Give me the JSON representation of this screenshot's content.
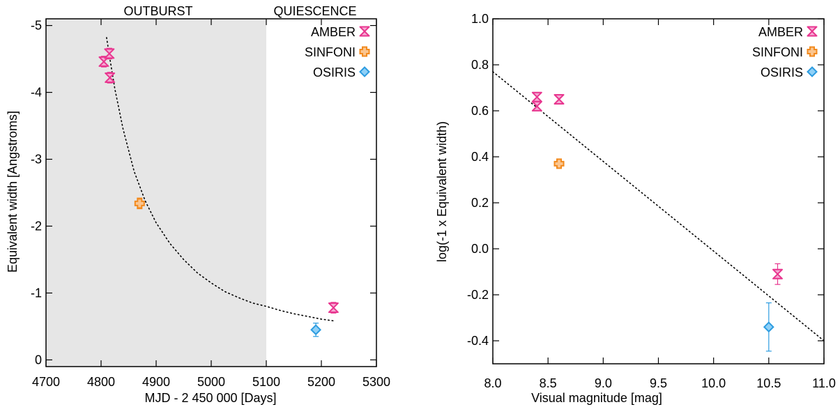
{
  "chart_data": [
    {
      "type": "scatter",
      "xlabel": "MJD - 2 450 000 [Days]",
      "ylabel": "Equivalent width [Angstroms]",
      "xlim": [
        4700,
        5300
      ],
      "ylim": [
        0.1,
        -5.1
      ],
      "y_axis_reversed": true,
      "xticks": [
        4700,
        4800,
        4900,
        5000,
        5100,
        5200,
        5300
      ],
      "yticks": [
        0,
        -1,
        -2,
        -3,
        -4,
        -5
      ],
      "shaded_region": {
        "x": [
          4700,
          5100
        ],
        "color": "#e6e6e6"
      },
      "annotations": [
        "OUTBURST",
        "QUIESCENCE"
      ],
      "legend": [
        "AMBER",
        "SINFONI",
        "OSIRIS"
      ],
      "legend_position": "top-right",
      "series": [
        {
          "name": "AMBER",
          "marker": "hourglass",
          "color": "#e8368f",
          "points": [
            [
              4805,
              -4.46,
              0.08
            ],
            [
              4815,
              -4.58,
              0.08
            ],
            [
              4816,
              -4.22,
              0.08
            ],
            [
              5222,
              -0.78,
              0.08
            ]
          ]
        },
        {
          "name": "SINFONI",
          "marker": "cross",
          "color": "#f28a1e",
          "points": [
            [
              4870,
              -2.34,
              0.08
            ]
          ]
        },
        {
          "name": "OSIRIS",
          "marker": "diamond",
          "color": "#2c9ce0",
          "points": [
            [
              5190,
              -0.45,
              0.1
            ]
          ]
        }
      ],
      "fit_curve": {
        "style": "dotted",
        "points": [
          [
            4810,
            -4.82
          ],
          [
            4815,
            -4.55
          ],
          [
            4825,
            -4.05
          ],
          [
            4840,
            -3.45
          ],
          [
            4860,
            -2.82
          ],
          [
            4880,
            -2.38
          ],
          [
            4900,
            -2.05
          ],
          [
            4925,
            -1.74
          ],
          [
            4950,
            -1.5
          ],
          [
            4975,
            -1.3
          ],
          [
            5000,
            -1.15
          ],
          [
            5025,
            -1.02
          ],
          [
            5050,
            -0.93
          ],
          [
            5075,
            -0.85
          ],
          [
            5100,
            -0.8
          ],
          [
            5125,
            -0.74
          ],
          [
            5150,
            -0.69
          ],
          [
            5175,
            -0.65
          ],
          [
            5200,
            -0.61
          ],
          [
            5225,
            -0.58
          ]
        ]
      }
    },
    {
      "type": "scatter",
      "xlabel": "Visual magnitude [mag]",
      "ylabel": "log(-1 x Equivalent width)",
      "xlim": [
        8.0,
        11.0
      ],
      "ylim": [
        -0.5,
        1.0
      ],
      "xticks": [
        "8.0",
        "8.5",
        "9.0",
        "9.5",
        "10.0",
        "10.5",
        "11.0"
      ],
      "yticks": [
        "-0.4",
        "-0.2",
        "0.0",
        "0.2",
        "0.4",
        "0.6",
        "0.8",
        "1.0"
      ],
      "legend": [
        "AMBER",
        "SINFONI",
        "OSIRIS"
      ],
      "legend_position": "top-right",
      "series": [
        {
          "name": "AMBER",
          "marker": "hourglass",
          "color": "#e8368f",
          "points": [
            [
              8.4,
              0.66,
              0.01
            ],
            [
              8.4,
              0.62,
              0.01
            ],
            [
              8.6,
              0.65,
              0.01
            ],
            [
              10.58,
              -0.11,
              0.045
            ]
          ]
        },
        {
          "name": "SINFONI",
          "marker": "cross",
          "color": "#f28a1e",
          "points": [
            [
              8.6,
              0.37,
              0.01
            ]
          ]
        },
        {
          "name": "OSIRIS",
          "marker": "diamond",
          "color": "#2c9ce0",
          "points": [
            [
              10.5,
              -0.34,
              0.105
            ]
          ]
        }
      ],
      "fit_line": {
        "style": "dotted",
        "points": [
          [
            8.0,
            0.77
          ],
          [
            11.0,
            -0.4
          ]
        ]
      }
    }
  ]
}
